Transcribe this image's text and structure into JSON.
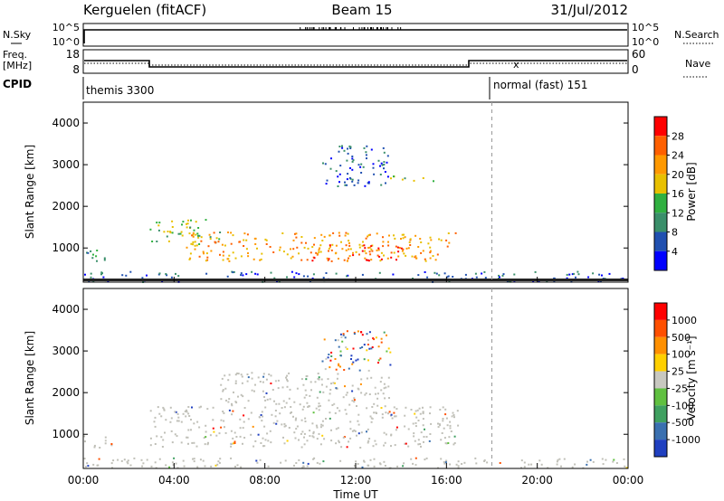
{
  "header": {
    "station": "Kerguelen (fitACF)",
    "beam": "Beam 15",
    "date": "31/Jul/2012"
  },
  "top_panels": {
    "nsky_label": "N.Sky",
    "nsearch_label": "N.Search",
    "nsky_ticks": [
      "10^5",
      "10^0"
    ],
    "nsearch_ticks": [
      "10^5",
      "10^0"
    ],
    "freq_label_line1": "Freq.",
    "freq_label_line2": "[MHz]",
    "freq_ticks": [
      "18",
      "8"
    ],
    "nave_label": "Nave",
    "nave_ticks": [
      "60",
      "0"
    ],
    "cpid_label": "CPID",
    "cpid_segments": [
      {
        "label": "themis 3300",
        "start_hour": 0,
        "end_hour": 18
      },
      {
        "label": "normal (fast) 151",
        "start_hour": 18,
        "end_hour": 24
      }
    ]
  },
  "colors": {
    "power_scale": [
      "#0000ff",
      "#2050b0",
      "#3a8f6a",
      "#30b040",
      "#e8c000",
      "#ff9900",
      "#ff6000",
      "#ff0000"
    ],
    "velocity_scale": [
      "#2040c0",
      "#3a70b0",
      "#3fa060",
      "#60c040",
      "#c8c8c0",
      "#ffd000",
      "#ff9000",
      "#ff5000",
      "#ff0000"
    ],
    "ground_scatter": "#c0c0b8"
  },
  "chart_data": [
    {
      "type": "heatmap",
      "name": "power_panel",
      "xlabel": "",
      "ylabel": "Slant Range [km]",
      "xlim": [
        0,
        24
      ],
      "ylim": [
        180,
        4500
      ],
      "yticks": [
        "4000",
        "3000",
        "2000",
        "1000"
      ],
      "ytick_values": [
        4000,
        3000,
        2000,
        1000
      ],
      "colorbar": {
        "label": "Power [dB]",
        "ticks": [
          "28",
          "24",
          "20",
          "16",
          "12",
          "8",
          "4"
        ],
        "range": [
          0,
          30
        ]
      },
      "regions": [
        {
          "t0": 0.0,
          "t1": 1.3,
          "r0": 700,
          "r1": 1000,
          "level": 10
        },
        {
          "t0": 2.9,
          "t1": 6.0,
          "r0": 1100,
          "r1": 1700,
          "level": 14
        },
        {
          "t0": 4.5,
          "t1": 16.5,
          "r0": 700,
          "r1": 1400,
          "level": 20
        },
        {
          "t0": 10.0,
          "t1": 14.0,
          "r0": 700,
          "r1": 1100,
          "level": 26
        },
        {
          "t0": 10.5,
          "t1": 13.5,
          "r0": 2500,
          "r1": 3500,
          "level": 6
        },
        {
          "t0": 13.5,
          "t1": 15.5,
          "r0": 2600,
          "r1": 2750,
          "level": 14
        },
        {
          "t0": 0.0,
          "t1": 24.0,
          "r0": 200,
          "r1": 450,
          "level": 6
        }
      ]
    },
    {
      "type": "heatmap",
      "name": "velocity_panel",
      "xlabel": "Time UT",
      "ylabel": "Slant Range [km]",
      "xlim": [
        0,
        24
      ],
      "ylim": [
        180,
        4500
      ],
      "x_ticks": [
        "00:00",
        "04:00",
        "08:00",
        "12:00",
        "16:00",
        "20:00",
        "00:00"
      ],
      "x_tick_values": [
        0,
        4,
        8,
        12,
        16,
        20,
        24
      ],
      "yticks": [
        "4000",
        "3000",
        "2000",
        "1000"
      ],
      "ytick_values": [
        4000,
        3000,
        2000,
        1000
      ],
      "colorbar": {
        "label": "Velocity [m s⁻¹]",
        "ticks": [
          "1000",
          "500",
          "100",
          "25",
          "-25",
          "-100",
          "-500",
          "-1000"
        ]
      },
      "regions": [
        {
          "t0": 0.0,
          "t1": 1.3,
          "r0": 700,
          "r1": 1000,
          "kind": "ground"
        },
        {
          "t0": 2.9,
          "t1": 16.5,
          "r0": 700,
          "r1": 1700,
          "kind": "ground"
        },
        {
          "t0": 6.0,
          "t1": 13.5,
          "r0": 1700,
          "r1": 2500,
          "kind": "ground"
        },
        {
          "t0": 10.5,
          "t1": 13.5,
          "r0": 2500,
          "r1": 3500,
          "kind": "mixed"
        },
        {
          "t0": 0.0,
          "t1": 24.0,
          "r0": 200,
          "r1": 450,
          "kind": "ground"
        }
      ]
    }
  ]
}
